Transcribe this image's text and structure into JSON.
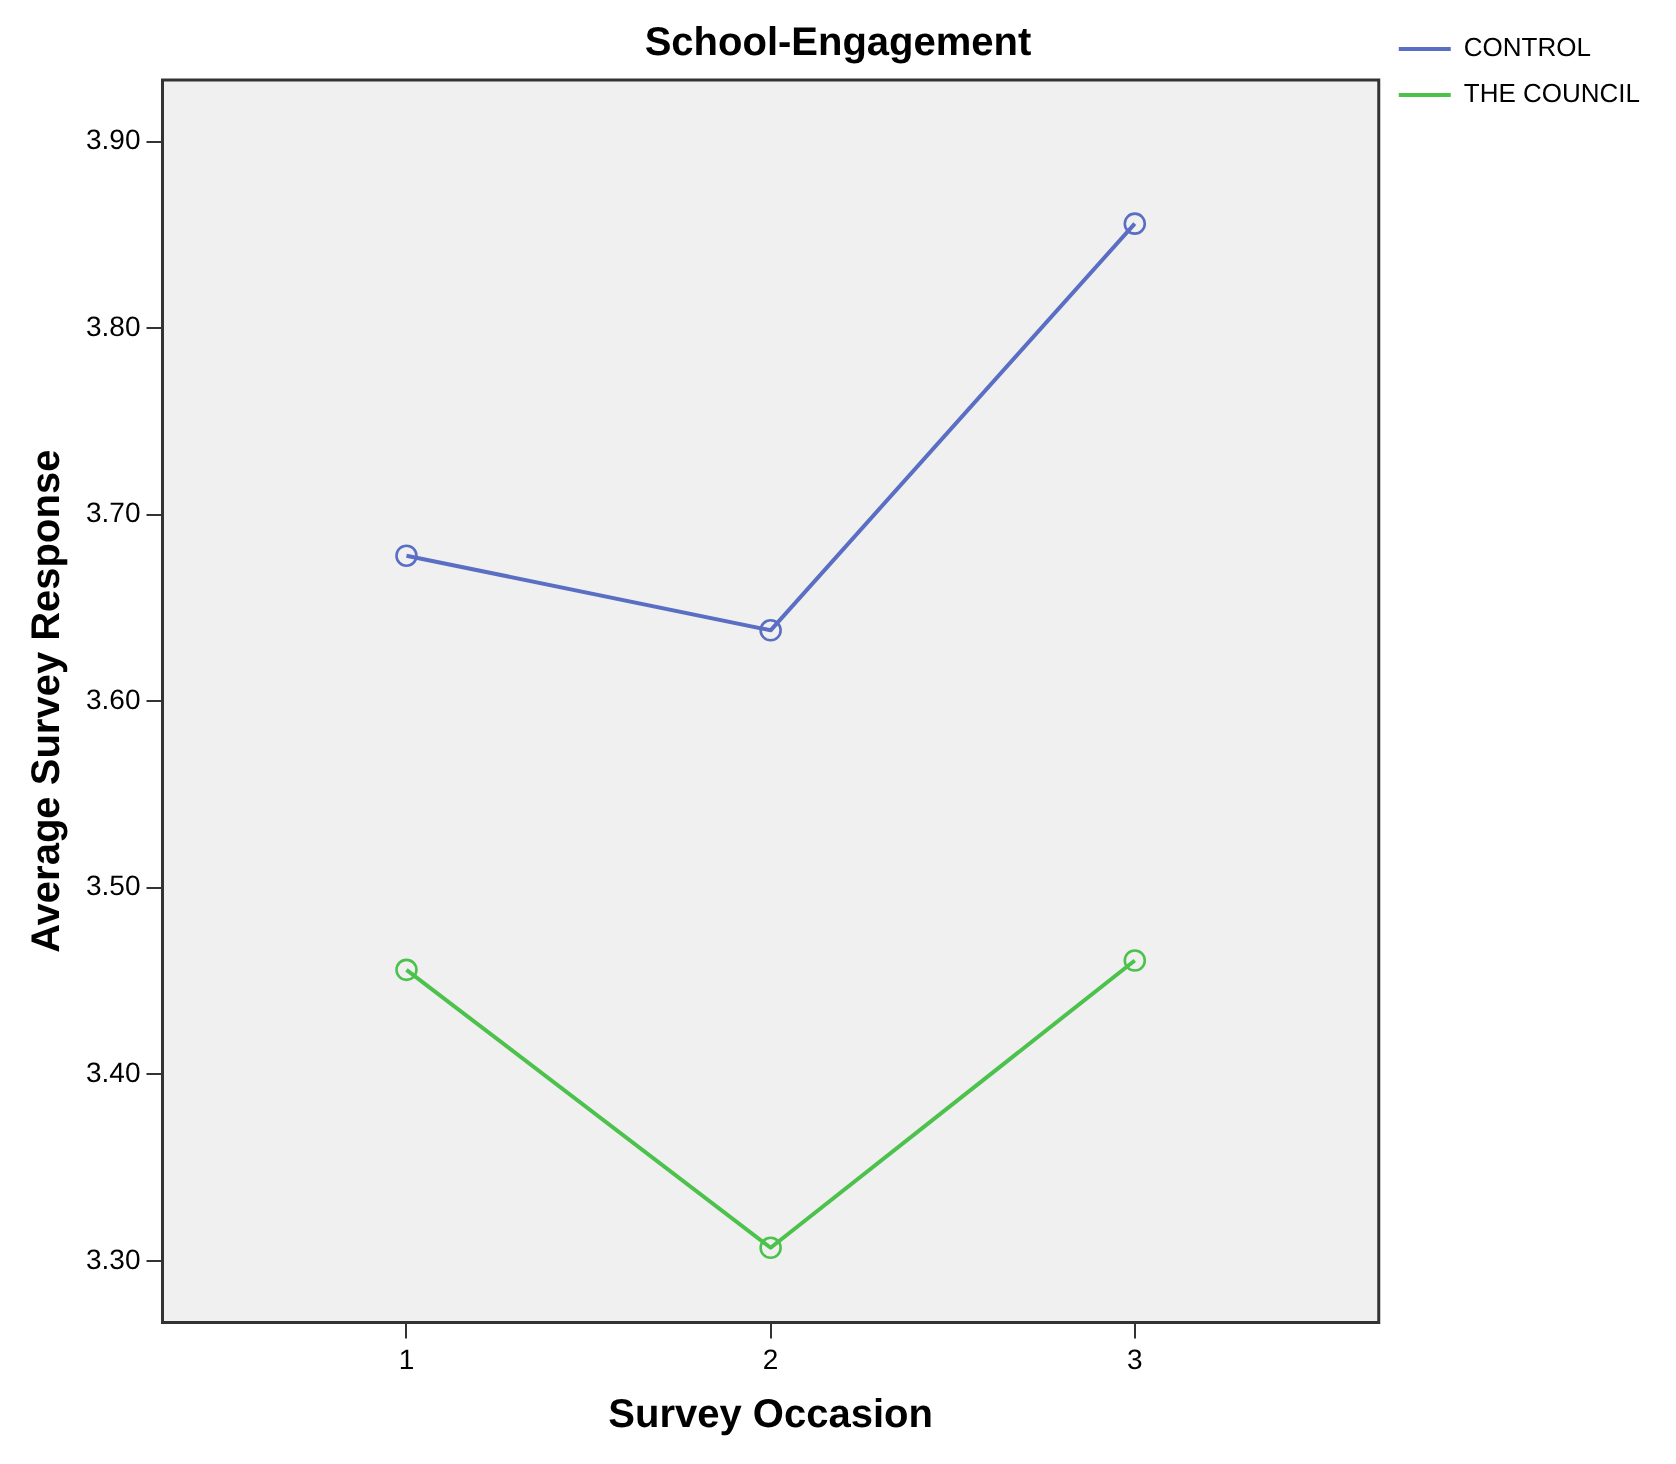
{
  "chart_data": {
    "type": "line",
    "title": "School-Engagement",
    "xlabel": "Survey Occasion",
    "ylabel": "Average Survey Response",
    "x": [
      1,
      2,
      3
    ],
    "series": [
      {
        "name": "CONTROL",
        "color": "#5a6fc4",
        "values": [
          3.678,
          3.638,
          3.856
        ]
      },
      {
        "name": "THE COUNCIL",
        "color": "#4cc24c",
        "values": [
          3.456,
          3.307,
          3.461
        ]
      }
    ],
    "xlim": [
      0.33,
      3.67
    ],
    "xticks": [
      1,
      2,
      3
    ],
    "ylim": [
      3.267,
      3.933
    ],
    "yticks": [
      {
        "value": 3.3,
        "label": "3.30"
      },
      {
        "value": 3.4,
        "label": "3.40"
      },
      {
        "value": 3.5,
        "label": "3.50"
      },
      {
        "value": 3.6,
        "label": "3.60"
      },
      {
        "value": 3.7,
        "label": "3.70"
      },
      {
        "value": 3.8,
        "label": "3.80"
      },
      {
        "value": 3.9,
        "label": "3.90"
      }
    ],
    "grid": false,
    "legend": "top right",
    "marker": "circle",
    "line_style": "solid"
  }
}
